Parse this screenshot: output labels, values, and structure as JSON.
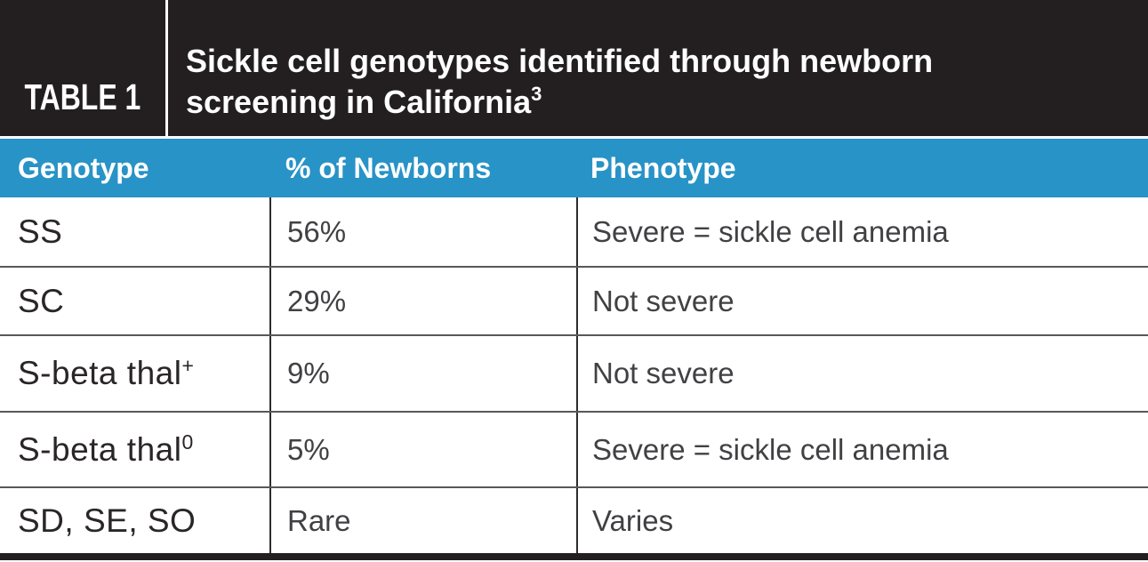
{
  "label": "TABLE 1",
  "title": {
    "line1": "Sickle cell genotypes identified through newborn",
    "line2": "screening in California",
    "sup": "3"
  },
  "header": {
    "columns": [
      "Genotype",
      "% of Newborns",
      "Phenotype"
    ]
  },
  "rows": [
    {
      "genotype": "SS",
      "genotype_sup": "",
      "percent": "56%",
      "phenotype": "Severe = sickle cell anemia"
    },
    {
      "genotype": "SC",
      "genotype_sup": "",
      "percent": "29%",
      "phenotype": "Not severe"
    },
    {
      "genotype": "S-beta thal",
      "genotype_sup": "+",
      "percent": "9%",
      "phenotype": "Not severe"
    },
    {
      "genotype": "S-beta thal",
      "genotype_sup": "0",
      "percent": "5%",
      "phenotype": "Severe = sickle cell anemia"
    },
    {
      "genotype": "SD, SE, SO",
      "genotype_sup": "",
      "percent": "Rare",
      "phenotype": "Varies"
    }
  ],
  "colors": {
    "band-black": "#231f20",
    "header-blue": "#2893c7",
    "row-line": "#58585a",
    "col-line": "#2f2b2c",
    "genotype-text": "#2a2627",
    "cell-text": "#414144",
    "header-text": "#ffffff"
  }
}
